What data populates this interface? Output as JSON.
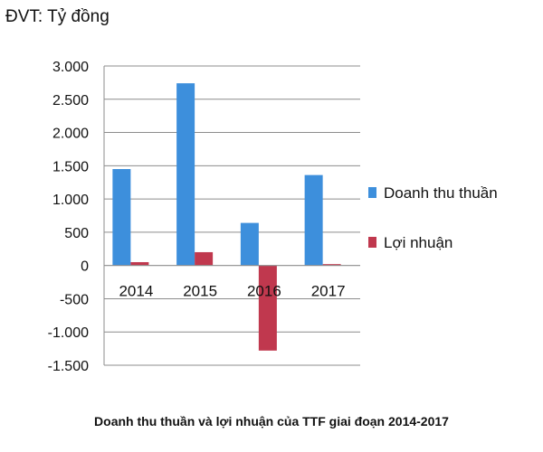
{
  "chart_data": {
    "type": "bar",
    "unit_label": "ĐVT: Tỷ đồng",
    "caption": "Doanh thu thuần và lợi nhuận của TTF giai đoạn 2014-2017",
    "categories": [
      "2014",
      "2015",
      "2016",
      "2017"
    ],
    "series": [
      {
        "name": "Doanh thu thuần",
        "color": "#3d8fdc",
        "values": [
          1450,
          2740,
          640,
          1360
        ]
      },
      {
        "name": "Lợi nhuận",
        "color": "#c0384e",
        "values": [
          50,
          200,
          -1280,
          20
        ]
      }
    ],
    "ylim": [
      -1500,
      3000
    ],
    "yticks": [
      3000,
      2500,
      2000,
      1500,
      1000,
      500,
      0,
      -500,
      -1000,
      -1500
    ],
    "ytick_labels": [
      "3.000",
      "2.500",
      "2.000",
      "1.500",
      "1.000",
      "500",
      "0",
      "-500",
      "-1.000",
      "-1.500"
    ],
    "grid": true,
    "legend_position": "right"
  }
}
